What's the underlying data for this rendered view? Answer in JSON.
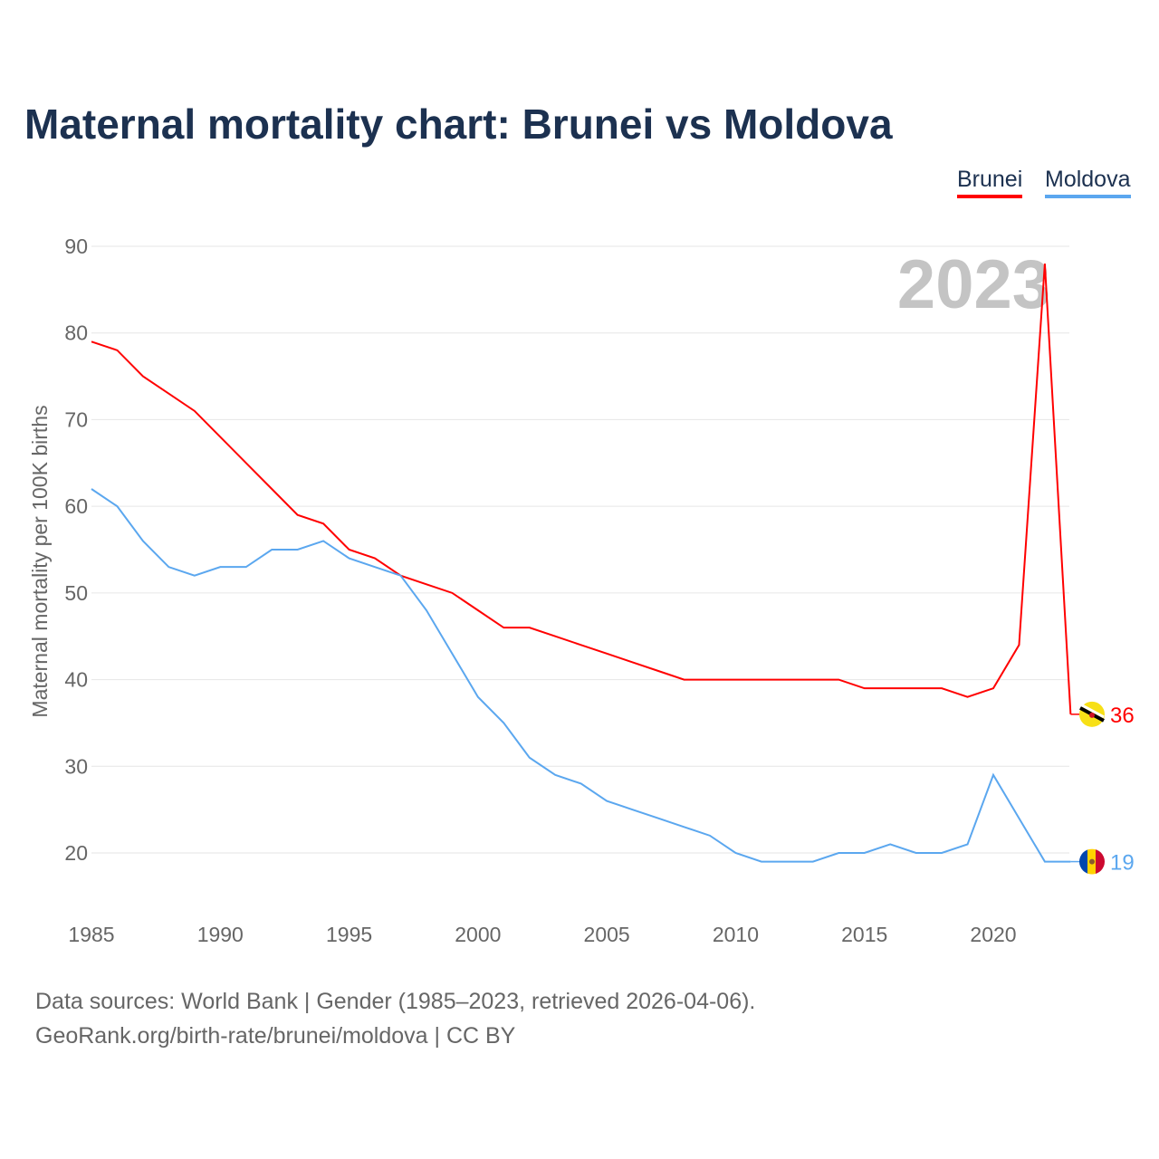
{
  "chart_data": {
    "type": "line",
    "title": "Maternal mortality chart: Brunei vs Moldova",
    "xlabel": "",
    "ylabel": "Maternal mortality per 100K births",
    "x": [
      1985,
      1986,
      1987,
      1988,
      1989,
      1990,
      1991,
      1992,
      1993,
      1994,
      1995,
      1996,
      1997,
      1998,
      1999,
      2000,
      2001,
      2002,
      2003,
      2004,
      2005,
      2006,
      2007,
      2008,
      2009,
      2010,
      2011,
      2012,
      2013,
      2014,
      2015,
      2016,
      2017,
      2018,
      2019,
      2020,
      2021,
      2022,
      2023
    ],
    "series": [
      {
        "name": "Brunei",
        "color": "#ff0000",
        "values": [
          79,
          78,
          75,
          73,
          71,
          68,
          65,
          62,
          59,
          58,
          55,
          54,
          52,
          51,
          50,
          48,
          46,
          46,
          45,
          44,
          43,
          42,
          41,
          40,
          40,
          40,
          40,
          40,
          40,
          40,
          39,
          39,
          39,
          39,
          38,
          39,
          44,
          88,
          36
        ],
        "end_label": "36"
      },
      {
        "name": "Moldova",
        "color": "#5ba7ef",
        "values": [
          62,
          60,
          56,
          53,
          52,
          53,
          53,
          55,
          55,
          56,
          54,
          53,
          52,
          48,
          43,
          38,
          35,
          31,
          29,
          28,
          26,
          25,
          24,
          23,
          22,
          20,
          19,
          19,
          19,
          20,
          20,
          21,
          20,
          20,
          21,
          29,
          24,
          19,
          19
        ],
        "end_label": "19"
      }
    ],
    "xticks": [
      "1985",
      "1990",
      "1995",
      "2000",
      "2005",
      "2010",
      "2015",
      "2020"
    ],
    "yticks": [
      "20",
      "30",
      "40",
      "50",
      "60",
      "70",
      "80",
      "90"
    ],
    "xlim": [
      1985,
      2023
    ],
    "ylim": [
      13,
      90
    ],
    "grid": true,
    "legend": "top-right",
    "year_watermark": "2023"
  },
  "footer": {
    "line1": "Data sources: World Bank | Gender (1985–2023, retrieved 2026-04-06).",
    "line2": "GeoRank.org/birth-rate/brunei/moldova | CC BY"
  }
}
